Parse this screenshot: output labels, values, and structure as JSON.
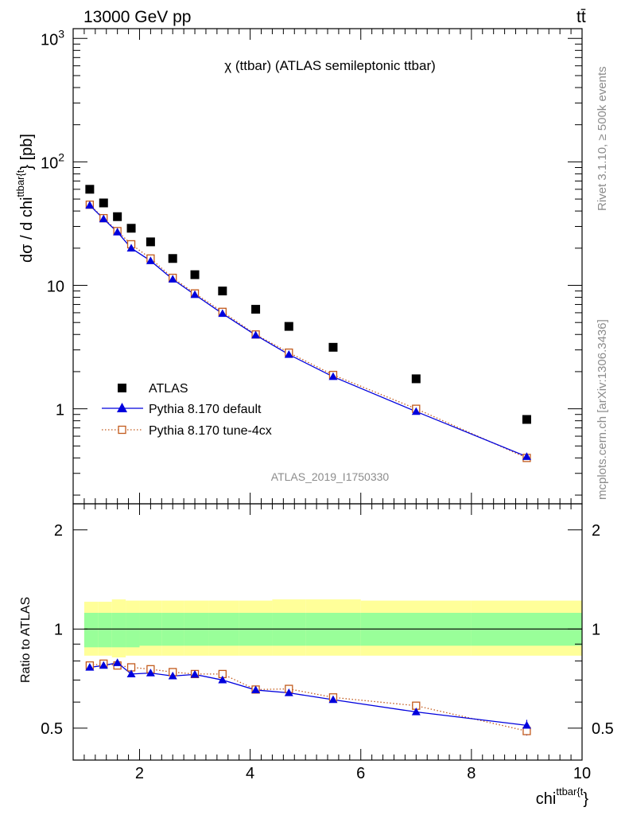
{
  "header": {
    "energy_label": "13000 GeV pp",
    "process_label": "tt̄",
    "plot_title": "χ (ttbar) (ATLAS semileptonic ttbar)",
    "analysis_id": "ATLAS_2019_I1750330",
    "rivet_label": "Rivet 3.1.10, ≥ 500k events",
    "mcplots_label": "mcplots.cern.ch [arXiv:1306.3436]"
  },
  "chart_data": [
    {
      "type": "scatter",
      "ylabel": "dσ / d chi^{ttbar{t}} [pb]",
      "ylabel_main": "dσ / d chi",
      "ylabel_sup": "ttbar{t",
      "ylabel_tail": "} [pb]",
      "yscale": "log",
      "xlim": [
        0.8,
        10
      ],
      "ylim": [
        0.17,
        1200
      ],
      "ytick_labels": [
        {
          "value": 1,
          "label": "1"
        },
        {
          "value": 10,
          "label": "10"
        },
        {
          "value": 100,
          "label": "10",
          "sup": "2"
        },
        {
          "value": 1000,
          "label": "10",
          "sup": "3"
        }
      ],
      "legend_position": "bottom-left",
      "series": [
        {
          "name": "ATLAS",
          "color": "#000000",
          "marker": "square",
          "x": [
            1.1,
            1.35,
            1.6,
            1.85,
            2.2,
            2.6,
            3.0,
            3.5,
            4.1,
            4.7,
            5.5,
            7.0,
            9.0
          ],
          "y": [
            60,
            46.5,
            36,
            29,
            22.5,
            16.5,
            12.2,
            9.0,
            6.4,
            4.65,
            3.15,
            1.75,
            0.82
          ]
        },
        {
          "name": "Pythia 8.170 default",
          "color": "#0000dd",
          "marker": "triangle",
          "x": [
            1.1,
            1.35,
            1.6,
            1.85,
            2.2,
            2.6,
            3.0,
            3.5,
            4.1,
            4.7,
            5.5,
            7.0,
            9.0
          ],
          "y": [
            44.5,
            34.5,
            27,
            20,
            15.8,
            11.2,
            8.4,
            5.9,
            3.95,
            2.75,
            1.82,
            0.95,
            0.41
          ]
        },
        {
          "name": "Pythia 8.170 tune-4cx",
          "color": "#c25a1c",
          "marker": "open-square",
          "x": [
            1.1,
            1.35,
            1.6,
            1.85,
            2.2,
            2.6,
            3.0,
            3.5,
            4.1,
            4.7,
            5.5,
            7.0,
            9.0
          ],
          "y": [
            45,
            35,
            27.5,
            21.5,
            16.5,
            11.5,
            8.6,
            6.1,
            4.0,
            2.85,
            1.88,
            1.0,
            0.4
          ]
        }
      ]
    },
    {
      "type": "line",
      "ylabel": "Ratio to ATLAS",
      "xlabel_main": "chi",
      "xlabel_sup": "ttbar{t",
      "xlabel_tail": "}",
      "xlim": [
        0.8,
        10
      ],
      "ylim": [
        0.4,
        2.4
      ],
      "yscale": "log",
      "xtick_labels": [
        2,
        4,
        6,
        8,
        10
      ],
      "ytick_labels": [
        0.5,
        1,
        2
      ],
      "band_edges": [
        1.0,
        1.25,
        1.5,
        1.75,
        2.0,
        2.4,
        2.8,
        3.25,
        3.8,
        4.4,
        5.0,
        6.0,
        8.0,
        10.0
      ],
      "band_inner": {
        "color": "#99ff99",
        "low": [
          0.88,
          0.88,
          0.88,
          0.88,
          0.89,
          0.89,
          0.89,
          0.89,
          0.89,
          0.89,
          0.89,
          0.89,
          0.89
        ],
        "high": [
          1.12,
          1.12,
          1.12,
          1.12,
          1.12,
          1.12,
          1.12,
          1.12,
          1.12,
          1.12,
          1.12,
          1.12,
          1.12
        ]
      },
      "band_outer": {
        "color": "#ffff99",
        "low": [
          0.83,
          0.83,
          0.82,
          0.83,
          0.83,
          0.83,
          0.83,
          0.83,
          0.83,
          0.83,
          0.83,
          0.83,
          0.83
        ],
        "high": [
          1.21,
          1.21,
          1.23,
          1.22,
          1.22,
          1.22,
          1.22,
          1.22,
          1.22,
          1.23,
          1.23,
          1.22,
          1.22
        ]
      },
      "series": [
        {
          "name": "Pythia 8.170 default",
          "color": "#0000dd",
          "marker": "triangle",
          "x": [
            1.1,
            1.35,
            1.6,
            1.85,
            2.2,
            2.6,
            3.0,
            3.5,
            4.1,
            4.7,
            5.5,
            7.0,
            9.0
          ],
          "y": [
            0.765,
            0.775,
            0.79,
            0.73,
            0.735,
            0.72,
            0.728,
            0.7,
            0.653,
            0.64,
            0.61,
            0.56,
            0.51
          ]
        },
        {
          "name": "Pythia 8.170 tune-4cx",
          "color": "#c25a1c",
          "marker": "open-square",
          "x": [
            1.1,
            1.35,
            1.6,
            1.85,
            2.2,
            2.6,
            3.0,
            3.5,
            4.1,
            4.7,
            5.5,
            7.0,
            9.0
          ],
          "y": [
            0.775,
            0.785,
            0.775,
            0.765,
            0.755,
            0.74,
            0.73,
            0.73,
            0.655,
            0.658,
            0.62,
            0.585,
            0.49
          ]
        }
      ]
    }
  ]
}
